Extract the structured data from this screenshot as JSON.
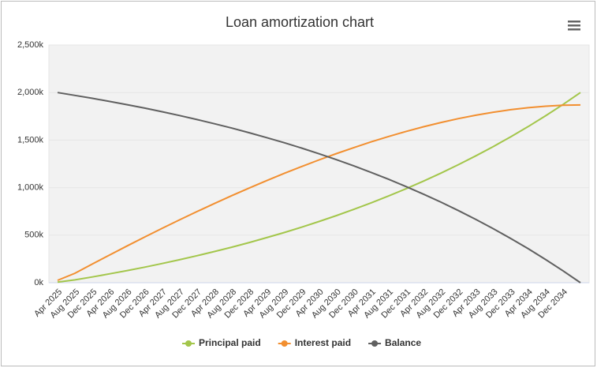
{
  "chart_data": {
    "type": "line",
    "title": "Loan amortization chart",
    "categories": [
      "Apr 2025",
      "Aug 2025",
      "Dec 2025",
      "Apr 2026",
      "Aug 2026",
      "Dec 2026",
      "Apr 2027",
      "Aug 2027",
      "Dec 2027",
      "Apr 2028",
      "Aug 2028",
      "Dec 2028",
      "Apr 2029",
      "Aug 2029",
      "Dec 2029",
      "Apr 2030",
      "Aug 2030",
      "Dec 2030",
      "Apr 2031",
      "Aug 2031",
      "Dec 2031",
      "Apr 2032",
      "Aug 2032",
      "Dec 2032",
      "Apr 2033",
      "Aug 2033",
      "Dec 2033",
      "Apr 2034",
      "Aug 2034",
      "Dec 2034",
      null
    ],
    "series": [
      {
        "name": "Principal paid",
        "color": "#a3c64b",
        "values": [
          7,
          29.6,
          60.7,
          93.5,
          127.8,
          163.9,
          201.9,
          241.8,
          283.7,
          327.8,
          374.1,
          422.8,
          474,
          527.7,
          584.2,
          643.6,
          706,
          771.5,
          840.5,
          912.9,
          989,
          1069,
          1153.1,
          1241.5,
          1334.4,
          1432,
          1534.6,
          1642.4,
          1755.7,
          1874.8,
          2000
        ]
      },
      {
        "name": "Interest paid",
        "color": "#f28f30",
        "values": [
          25,
          99.4,
          197.3,
          293.5,
          388.2,
          481.1,
          572.1,
          661.2,
          748.3,
          833.2,
          915.9,
          996.2,
          1074,
          1149.3,
          1221.8,
          1291.4,
          1358,
          1421.5,
          1481.5,
          1538.1,
          1591,
          1640,
          1684.9,
          1725.5,
          1761.6,
          1793,
          1819.4,
          1840.6,
          1856.3,
          1866.2,
          1870
        ]
      },
      {
        "name": "Balance",
        "color": "#606060",
        "values": [
          2000,
          1970.4,
          1939.3,
          1906.5,
          1872.2,
          1836.1,
          1798.1,
          1758.2,
          1716.3,
          1672.2,
          1625.9,
          1577.2,
          1526,
          1472.3,
          1415.8,
          1356.4,
          1294,
          1228.5,
          1159.5,
          1087.1,
          1011,
          931,
          846.9,
          758.5,
          665.6,
          568,
          465.4,
          357.6,
          244.3,
          125.2,
          0
        ]
      }
    ],
    "ylim": [
      0,
      2500
    ],
    "yticks": [
      {
        "value": 0,
        "label": "0k"
      },
      {
        "value": 500,
        "label": "500k"
      },
      {
        "value": 1000,
        "label": "1,000k"
      },
      {
        "value": 1500,
        "label": "1,500k"
      },
      {
        "value": 2000,
        "label": "2,000k"
      },
      {
        "value": 2500,
        "label": "2,500k"
      }
    ],
    "grid": true,
    "legend": "bottom"
  }
}
